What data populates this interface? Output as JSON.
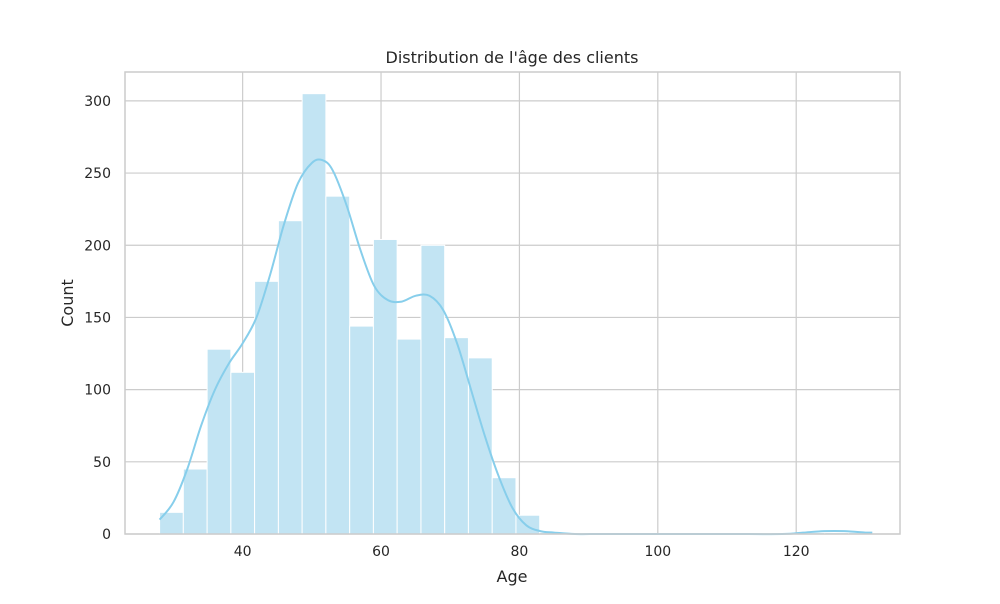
{
  "chart_data": {
    "type": "bar",
    "title": "Distribution de l'âge des clients",
    "xlabel": "Age",
    "ylabel": "Count",
    "xlim": [
      23,
      135
    ],
    "ylim": [
      0,
      320
    ],
    "xticks": [
      40,
      60,
      80,
      100,
      120
    ],
    "yticks": [
      0,
      50,
      100,
      150,
      200,
      250,
      300
    ],
    "bin_edges": [
      28,
      31.43,
      34.87,
      38.3,
      41.73,
      45.17,
      48.6,
      52.03,
      55.47,
      58.9,
      62.33,
      65.77,
      69.2,
      72.63,
      76.07,
      79.5,
      82.93,
      86.37,
      89.8,
      93.23,
      96.67,
      100.1,
      103.53,
      106.97,
      110.4,
      113.83,
      117.27,
      120.7,
      124.13,
      127.57,
      131
    ],
    "counts": [
      15,
      45,
      128,
      112,
      175,
      217,
      305,
      234,
      144,
      204,
      135,
      200,
      136,
      122,
      39,
      13,
      1,
      0,
      0,
      0,
      0,
      0,
      0,
      0,
      0,
      0,
      0,
      1,
      1,
      1
    ],
    "kde": {
      "x": [
        28,
        30,
        32,
        34,
        36,
        38,
        40,
        42,
        44,
        46,
        48,
        50,
        51.5,
        53,
        55,
        57,
        59,
        61,
        63,
        65,
        67,
        69,
        71,
        73,
        75,
        77,
        79,
        81,
        83,
        85,
        88,
        92,
        100,
        110,
        118,
        121,
        124,
        127,
        130,
        131
      ],
      "y": [
        10,
        22,
        45,
        75,
        100,
        118,
        132,
        150,
        180,
        215,
        243,
        257,
        259,
        252,
        228,
        197,
        172,
        162,
        161,
        165,
        165,
        155,
        132,
        100,
        68,
        40,
        18,
        6,
        2,
        1,
        0,
        0,
        0,
        0,
        0,
        1,
        2,
        2,
        1,
        1
      ]
    },
    "colors": {
      "bar_fill": "#c2e4f3",
      "kde_line": "#87ceeb",
      "grid": "#cccccc",
      "text": "#262626"
    },
    "grid": true
  }
}
